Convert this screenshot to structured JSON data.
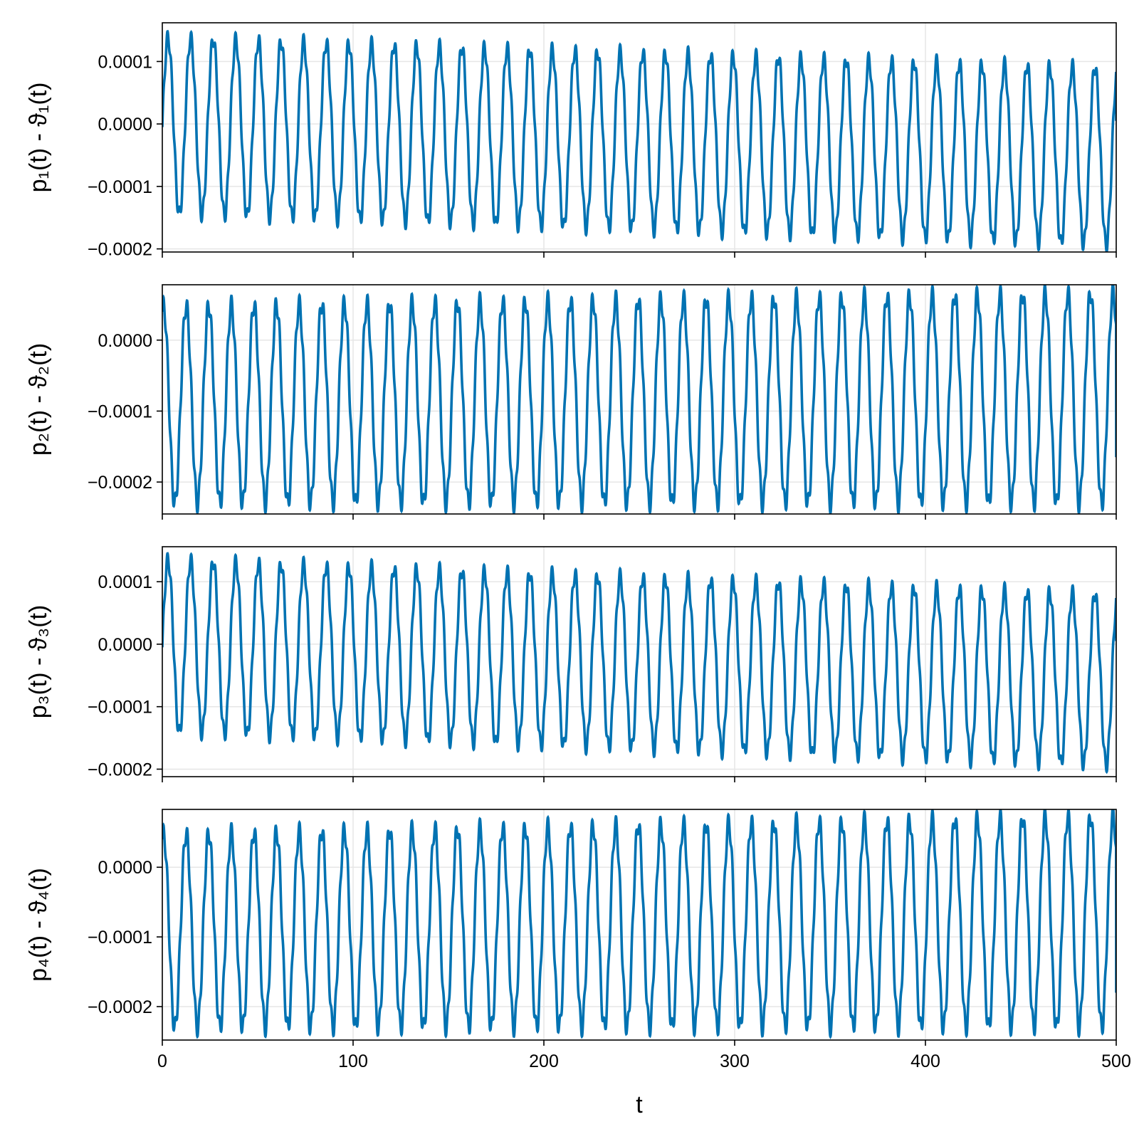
{
  "chart_data": [
    {
      "type": "line",
      "ylabel": "p₁(t) - ϑ₁(t)",
      "xlim": [
        0,
        500
      ],
      "ylim": [
        -0.000205,
        0.000162
      ],
      "x_ticks": [
        0,
        100,
        200,
        300,
        400,
        500
      ],
      "y_ticks": [
        {
          "value": 0.0001,
          "label": "0.0001"
        },
        {
          "value": 0.0,
          "label": "0.0000"
        },
        {
          "value": -0.0001,
          "label": "−0.0001"
        },
        {
          "value": -0.0002,
          "label": "−0.0002"
        }
      ],
      "x_tick_labels_shown": false,
      "grid": true,
      "series": [
        {
          "color": "#0072b2",
          "waveform": "oscillation",
          "period": 11.85,
          "center_start": -2.5e-06,
          "center_end": -5.2e-05,
          "amplitude_start": 0.000141,
          "amplitude_end": 0.000142,
          "ripple_period": 2.1,
          "ripple_amplitude": 1.2e-05,
          "first_y": -5e-06,
          "last_y": 5e-06
        }
      ]
    },
    {
      "type": "line",
      "ylabel": "p₂(t) - ϑ₂(t)",
      "xlim": [
        0,
        500
      ],
      "ylim": [
        -0.000245,
        7.8e-05
      ],
      "x_ticks": [
        0,
        100,
        200,
        300,
        400,
        500
      ],
      "y_ticks": [
        {
          "value": 0.0,
          "label": "0.0000"
        },
        {
          "value": -0.0001,
          "label": "−0.0001"
        },
        {
          "value": -0.0002,
          "label": "−0.0002"
        }
      ],
      "x_tick_labels_shown": false,
      "grid": true,
      "series": [
        {
          "color": "#0072b2",
          "waveform": "oscillation",
          "period": 11.85,
          "center_start": -9.1e-05,
          "center_end": -8.2e-05,
          "amplitude_start": 0.000139,
          "amplitude_end": 0.000149,
          "ripple_period": 2.1,
          "ripple_amplitude": 1.3e-05,
          "first_y": 4e-05,
          "last_y": -0.000165
        }
      ]
    },
    {
      "type": "line",
      "ylabel": "p₃(t) - ϑ₃(t)",
      "xlim": [
        0,
        500
      ],
      "ylim": [
        -0.000212,
        0.000156
      ],
      "x_ticks": [
        0,
        100,
        200,
        300,
        400,
        500
      ],
      "y_ticks": [
        {
          "value": 0.0001,
          "label": "0.0001"
        },
        {
          "value": 0.0,
          "label": "0.0000"
        },
        {
          "value": -0.0001,
          "label": "−0.0001"
        },
        {
          "value": -0.0002,
          "label": "−0.0002"
        }
      ],
      "x_tick_labels_shown": false,
      "grid": true,
      "series": [
        {
          "color": "#0072b2",
          "waveform": "oscillation",
          "period": 11.85,
          "center_start": -2.5e-06,
          "center_end": -5.7e-05,
          "amplitude_start": 0.000138,
          "amplitude_end": 0.000137,
          "ripple_period": 2.1,
          "ripple_amplitude": 1.2e-05,
          "first_y": -5e-06,
          "last_y": 5e-06
        }
      ]
    },
    {
      "type": "line",
      "ylabel": "p₄(t) - ϑ₄(t)",
      "xlim": [
        0,
        500
      ],
      "ylim": [
        -0.000248,
        8.3e-05
      ],
      "x_ticks": [
        0,
        100,
        200,
        300,
        400,
        500
      ],
      "y_ticks": [
        {
          "value": 0.0,
          "label": "0.0000"
        },
        {
          "value": -0.0001,
          "label": "−0.0001"
        },
        {
          "value": -0.0002,
          "label": "−0.0002"
        }
      ],
      "x_tick_labels_shown": true,
      "xlabel": "t",
      "grid": true,
      "series": [
        {
          "color": "#0072b2",
          "waveform": "oscillation",
          "period": 11.85,
          "center_start": -9.1e-05,
          "center_end": -7.8e-05,
          "amplitude_start": 0.000139,
          "amplitude_end": 0.000152,
          "ripple_period": 2.1,
          "ripple_amplitude": 1.3e-05,
          "first_y": 4e-05,
          "last_y": -0.00018
        }
      ]
    }
  ]
}
